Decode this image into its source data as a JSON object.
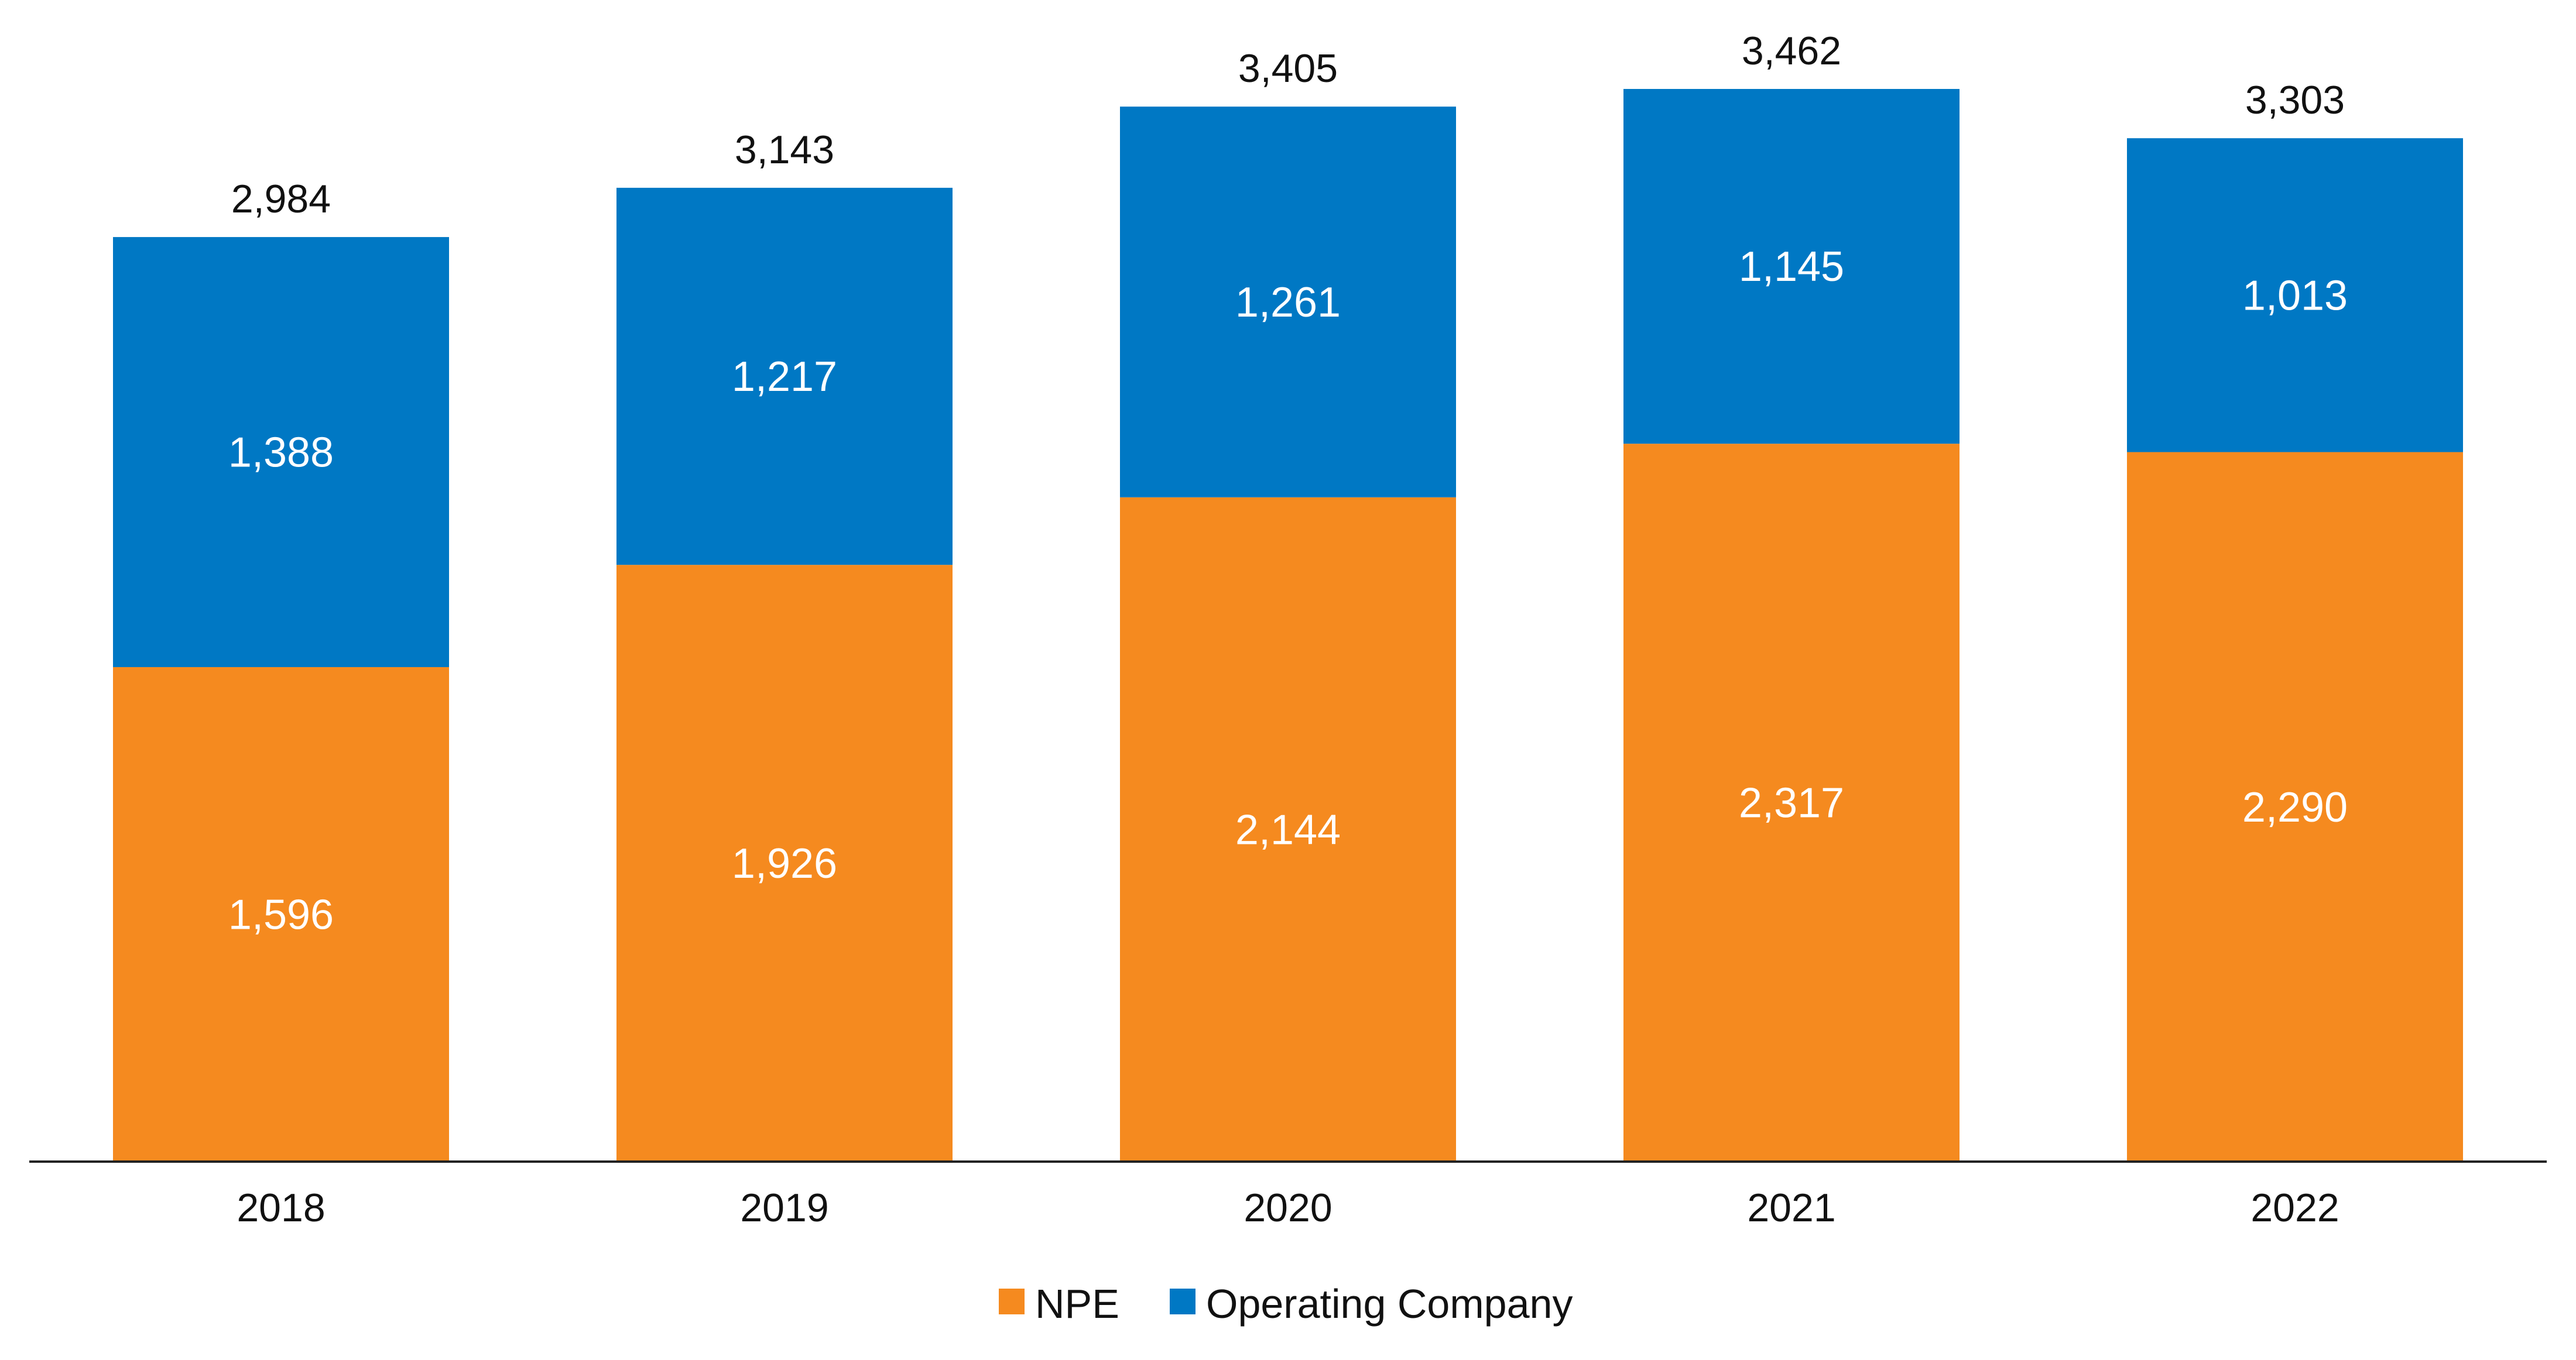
{
  "chart_data": {
    "type": "bar",
    "stacked": true,
    "title": "",
    "xlabel": "",
    "ylabel": "",
    "categories": [
      "2018",
      "2019",
      "2020",
      "2021",
      "2022"
    ],
    "series": [
      {
        "name": "NPE",
        "color": "#F58A1F",
        "values": [
          1596,
          1926,
          2144,
          2317,
          2290
        ]
      },
      {
        "name": "Operating Company",
        "color": "#0078C4",
        "values": [
          1388,
          1217,
          1261,
          1145,
          1013
        ]
      }
    ],
    "totals": [
      2984,
      3143,
      3405,
      3462,
      3303
    ],
    "segment_labels": {
      "NPE": [
        "1,596",
        "1,926",
        "2,144",
        "2,317",
        "2,290"
      ],
      "Operating Company": [
        "1,388",
        "1,217",
        "1,261",
        "1,145",
        "1,013"
      ]
    },
    "total_labels": [
      "2,984",
      "3,143",
      "3,405",
      "3,462",
      "3,303"
    ],
    "ylim": [
      0,
      3650
    ],
    "grid": false,
    "legend": "bottom-center",
    "axis_color": "#222222"
  }
}
